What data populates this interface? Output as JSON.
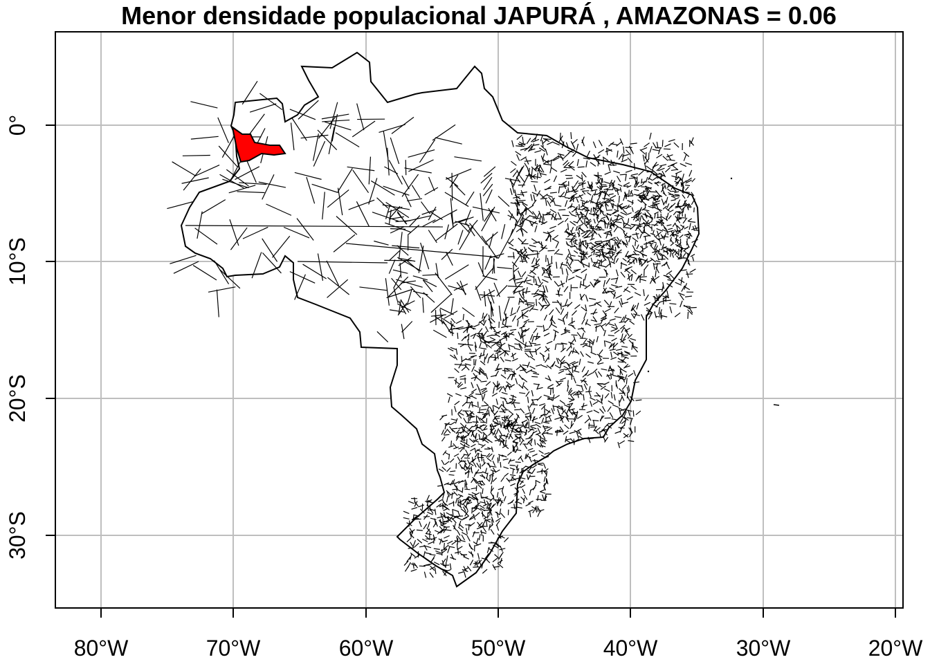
{
  "title": "Menor densidade populacional JAPURÁ , AMAZONAS = 0.06",
  "map": {
    "country": "Brazil",
    "highlight_region": "JAPURÁ, AMAZONAS",
    "highlight_color": "#FF0000",
    "border_color": "#000000",
    "background_color": "#FFFFFF",
    "grid_color": "#BEBEBE",
    "grid": true
  },
  "axes": {
    "x_ticks": [
      "80°W",
      "70°W",
      "60°W",
      "50°W",
      "40°W",
      "30°W",
      "20°W"
    ],
    "y_ticks": [
      "0°",
      "10°S",
      "20°S",
      "30°S"
    ]
  }
}
